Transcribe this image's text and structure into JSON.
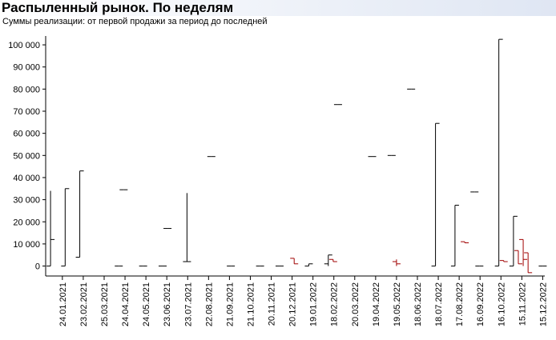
{
  "chart_data": {
    "type": "ohlc",
    "title": "Распыленный рынок. По неделям",
    "subtitle": "Суммы реализации: от первой продажи за период до последней",
    "x": [
      "07.01.2021",
      "28.01.2021",
      "18.02.2021",
      "15.04.2021",
      "22.04.2021",
      "20.05.2021",
      "17.06.2021",
      "24.06.2021",
      "22.07.2021",
      "26.08.2021",
      "23.09.2021",
      "04.11.2021",
      "02.12.2021",
      "23.12.2021",
      "13.01.2022",
      "10.02.2022",
      "17.02.2022",
      "24.02.2022",
      "14.04.2022",
      "12.05.2022",
      "19.05.2022",
      "09.06.2022",
      "14.07.2022",
      "11.08.2022",
      "25.08.2022",
      "08.09.2022",
      "15.09.2022",
      "13.10.2022",
      "20.10.2022",
      "03.11.2022",
      "10.11.2022",
      "17.11.2022",
      "24.11.2022",
      "15.12.2022"
    ],
    "open": [
      0,
      0,
      4000,
      0,
      34500,
      0,
      0,
      17000,
      2000,
      49500,
      0,
      0,
      0,
      3500,
      0,
      1000,
      3000,
      73000,
      49500,
      50000,
      2000,
      80000,
      0,
      0,
      11000,
      33500,
      0,
      0,
      2500,
      0,
      7000,
      12000,
      6000,
      0
    ],
    "high": [
      34000,
      35000,
      43000,
      0,
      34500,
      0,
      0,
      17000,
      33000,
      49500,
      0,
      0,
      0,
      3500,
      1000,
      5000,
      3000,
      73000,
      49500,
      50000,
      3000,
      80000,
      64500,
      27500,
      11000,
      33500,
      0,
      102500,
      2500,
      22500,
      7000,
      12000,
      6000,
      0
    ],
    "low": [
      0,
      0,
      4000,
      0,
      34500,
      0,
      0,
      17000,
      2000,
      49500,
      0,
      0,
      0,
      1000,
      0,
      0,
      2000,
      73000,
      49500,
      50000,
      0,
      80000,
      0,
      0,
      10500,
      33500,
      0,
      0,
      2000,
      0,
      1000,
      0,
      -3000,
      0
    ],
    "close": [
      12000,
      35000,
      43000,
      0,
      34500,
      0,
      0,
      17000,
      2000,
      49500,
      0,
      0,
      0,
      1000,
      1000,
      5000,
      2000,
      73000,
      49500,
      50000,
      1000,
      80000,
      64500,
      27500,
      10500,
      33500,
      0,
      102500,
      2000,
      22500,
      1000,
      3000,
      -3000,
      0
    ],
    "up_color": "#000000",
    "down_color": "#a00000",
    "xlim": [
      "31.12.2020",
      "18.12.2022"
    ],
    "xticks": [
      "24.01.2021",
      "23.02.2021",
      "25.03.2021",
      "24.04.2021",
      "24.05.2021",
      "23.06.2021",
      "23.07.2021",
      "22.08.2021",
      "21.09.2021",
      "21.10.2021",
      "20.11.2021",
      "20.12.2021",
      "19.01.2022",
      "18.02.2022",
      "20.03.2022",
      "19.04.2022",
      "19.05.2022",
      "18.06.2022",
      "18.07.2022",
      "17.08.2022",
      "16.09.2022",
      "16.10.2022",
      "15.11.2022",
      "15.12.2022"
    ],
    "ylim": [
      -4500,
      104000
    ],
    "yticks": [
      {
        "value": 0,
        "label": "0"
      },
      {
        "value": 10000,
        "label": "10 000"
      },
      {
        "value": 20000,
        "label": "20 000"
      },
      {
        "value": 30000,
        "label": "30 000"
      },
      {
        "value": 40000,
        "label": "40 000"
      },
      {
        "value": 50000,
        "label": "50 000"
      },
      {
        "value": 60000,
        "label": "60 000"
      },
      {
        "value": 70000,
        "label": "70 000"
      },
      {
        "value": 80000,
        "label": "80 000"
      },
      {
        "value": 90000,
        "label": "90 000"
      },
      {
        "value": 100000,
        "label": "100 000"
      }
    ]
  }
}
